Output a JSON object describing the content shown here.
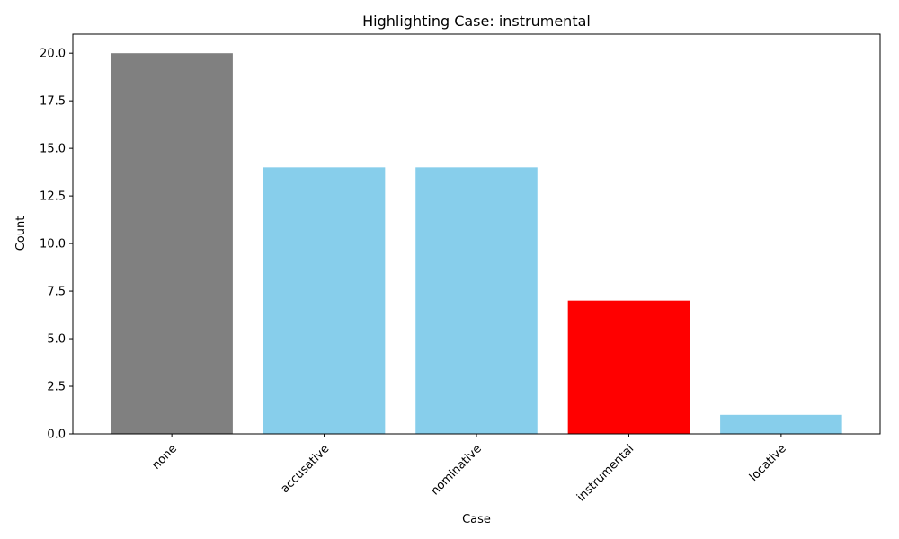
{
  "chart_data": {
    "type": "bar",
    "title": "Highlighting Case: instrumental",
    "xlabel": "Case",
    "ylabel": "Count",
    "categories": [
      "none",
      "accusative",
      "nominative",
      "instrumental",
      "locative"
    ],
    "values": [
      20,
      14,
      14,
      7,
      1
    ],
    "bar_colors": [
      "#808080",
      "#87ceeb",
      "#87ceeb",
      "#ff0000",
      "#87ceeb"
    ],
    "ylim": [
      0,
      21
    ],
    "yticks": [
      "0.0",
      "2.5",
      "5.0",
      "7.5",
      "10.0",
      "12.5",
      "15.0",
      "17.5",
      "20.0"
    ],
    "grid": false,
    "xtick_rotation": 45
  }
}
